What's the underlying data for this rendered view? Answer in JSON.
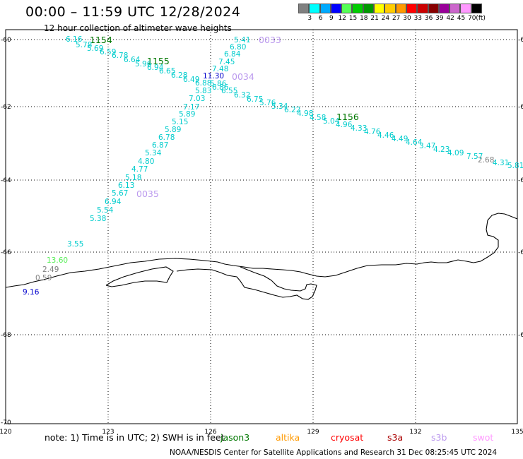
{
  "header": {
    "title": "00:00 – 11:59 UTC 12/28/2024",
    "subtitle": "12 hour collection of altimeter wave heights"
  },
  "legend": {
    "unit": "(ft)",
    "colors": [
      "#808080",
      "#00ffff",
      "#00aaff",
      "#0000ff",
      "#55ff55",
      "#00cc00",
      "#009900",
      "#ffff00",
      "#ffcc00",
      "#ff9900",
      "#ff0000",
      "#cc0000",
      "#880000",
      "#990099",
      "#cc66cc",
      "#ff99ff",
      "#000000"
    ],
    "labels": [
      "3",
      "6",
      "9",
      "12",
      "15",
      "18",
      "21",
      "24",
      "27",
      "30",
      "33",
      "36",
      "39",
      "42",
      "45",
      "70"
    ]
  },
  "map": {
    "x_ticks": [
      "120",
      "123",
      "126",
      "129",
      "132",
      "135"
    ],
    "y_ticks": [
      "-60",
      "-62",
      "-64",
      "-66",
      "-68",
      "-70"
    ],
    "passes": [
      {
        "label": "1154",
        "color": "#007700"
      },
      {
        "label": "1155",
        "color": "#007700"
      },
      {
        "label": "1156",
        "color": "#007700"
      },
      {
        "label": "0033",
        "color": "#bb99ee"
      },
      {
        "label": "0034",
        "color": "#bb99ee"
      },
      {
        "label": "0035",
        "color": "#bb99ee"
      }
    ],
    "readings": [
      {
        "v": "6.16",
        "c": "#00cccc"
      },
      {
        "v": "5.78",
        "c": "#00cccc"
      },
      {
        "v": "5.69",
        "c": "#00cccc"
      },
      {
        "v": "6.59",
        "c": "#00cccc"
      },
      {
        "v": "6.78",
        "c": "#00cccc"
      },
      {
        "v": "6.64",
        "c": "#00cccc"
      },
      {
        "v": "5.96",
        "c": "#00cccc"
      },
      {
        "v": "6.94",
        "c": "#00cccc"
      },
      {
        "v": "6.65",
        "c": "#00cccc"
      },
      {
        "v": "6.28",
        "c": "#00cccc"
      },
      {
        "v": "6.49",
        "c": "#00cccc"
      },
      {
        "v": "6.88",
        "c": "#00cccc"
      },
      {
        "v": "5.86",
        "c": "#00cccc"
      },
      {
        "v": "5.83",
        "c": "#00cccc"
      },
      {
        "v": "6.86",
        "c": "#00cccc"
      },
      {
        "v": "6.55",
        "c": "#00cccc"
      },
      {
        "v": "6.32",
        "c": "#00cccc"
      },
      {
        "v": "6.75",
        "c": "#00cccc"
      },
      {
        "v": "5.76",
        "c": "#00cccc"
      },
      {
        "v": "5.34",
        "c": "#00cccc"
      },
      {
        "v": "6.22",
        "c": "#00cccc"
      },
      {
        "v": "4.98",
        "c": "#00cccc"
      },
      {
        "v": "4.58",
        "c": "#00cccc"
      },
      {
        "v": "5.04",
        "c": "#00cccc"
      },
      {
        "v": "4.96",
        "c": "#00cccc"
      },
      {
        "v": "4.33",
        "c": "#00cccc"
      },
      {
        "v": "4.76",
        "c": "#00cccc"
      },
      {
        "v": "4.46",
        "c": "#00cccc"
      },
      {
        "v": "4.49",
        "c": "#00cccc"
      },
      {
        "v": "4.64",
        "c": "#00cccc"
      },
      {
        "v": "3.47",
        "c": "#00cccc"
      },
      {
        "v": "4.23",
        "c": "#00cccc"
      },
      {
        "v": "4.09",
        "c": "#00cccc"
      },
      {
        "v": "7.57",
        "c": "#00cccc"
      },
      {
        "v": "2.68",
        "c": "#808080"
      },
      {
        "v": "4.31",
        "c": "#00cccc"
      },
      {
        "v": "5.81",
        "c": "#00cccc"
      },
      {
        "v": "5.41",
        "c": "#00cccc"
      },
      {
        "v": "6.80",
        "c": "#00cccc"
      },
      {
        "v": "6.84",
        "c": "#00cccc"
      },
      {
        "v": "7.45",
        "c": "#00cccc"
      },
      {
        "v": "7.48",
        "c": "#00cccc"
      },
      {
        "v": "11.30",
        "c": "#0000cc"
      },
      {
        "v": "7.03",
        "c": "#00cccc"
      },
      {
        "v": "7.17",
        "c": "#00cccc"
      },
      {
        "v": "5.89",
        "c": "#00cccc"
      },
      {
        "v": "5.15",
        "c": "#00cccc"
      },
      {
        "v": "5.89",
        "c": "#00cccc"
      },
      {
        "v": "6.78",
        "c": "#00cccc"
      },
      {
        "v": "6.87",
        "c": "#00cccc"
      },
      {
        "v": "5.34",
        "c": "#00cccc"
      },
      {
        "v": "4.80",
        "c": "#00cccc"
      },
      {
        "v": "4.77",
        "c": "#00cccc"
      },
      {
        "v": "5.18",
        "c": "#00cccc"
      },
      {
        "v": "6.13",
        "c": "#00cccc"
      },
      {
        "v": "5.67",
        "c": "#00cccc"
      },
      {
        "v": "6.94",
        "c": "#00cccc"
      },
      {
        "v": "5.54",
        "c": "#00cccc"
      },
      {
        "v": "5.38",
        "c": "#00cccc"
      },
      {
        "v": "3.55",
        "c": "#00cccc"
      },
      {
        "v": "13.60",
        "c": "#55ee55"
      },
      {
        "v": "2.49",
        "c": "#808080"
      },
      {
        "v": "0.59",
        "c": "#808080"
      },
      {
        "v": "9.16",
        "c": "#0000cc"
      }
    ]
  },
  "footer": {
    "note": "note: 1) Time is in UTC; 2) SWH is in feet",
    "satellites": [
      {
        "name": "jason3",
        "color": "#007700"
      },
      {
        "name": "altika",
        "color": "#ff9900"
      },
      {
        "name": "cryosat",
        "color": "#ff0000"
      },
      {
        "name": "s3a",
        "color": "#aa0000"
      },
      {
        "name": "s3b",
        "color": "#bb99ee"
      },
      {
        "name": "swot",
        "color": "#ff99ff"
      }
    ],
    "credit": "NOAA/NESDIS Center for Satellite Applications and Research   31 Dec 08:25:45 UTC 2024"
  }
}
